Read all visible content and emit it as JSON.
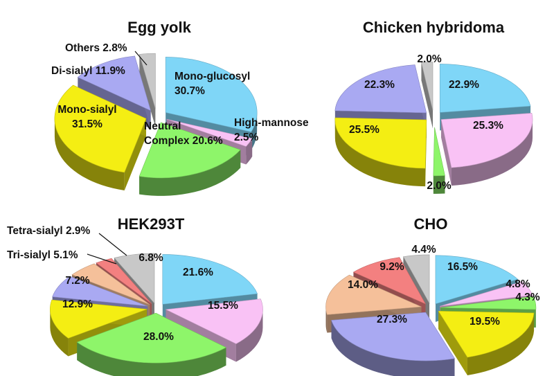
{
  "colors": {
    "mono-glucosyl": "#7fd6f7",
    "high-mannose": "#f9c2f5",
    "neutral-complex": "#8ef56a",
    "mono-sialyl": "#f4ee13",
    "di-sialyl": "#a9a9f2",
    "tri-sialyl": "#f5c09a",
    "tetra-sialyl": "#f38080",
    "others": "#c8c8c8"
  },
  "chart_data": [
    {
      "type": "pie",
      "title": "Egg yolk",
      "slices": [
        {
          "category": "mono-glucosyl",
          "value": 30.7,
          "label": "Mono-glucosyl 30.7%"
        },
        {
          "category": "high-mannose",
          "value": 2.5,
          "label": "High-mannose 2.5%"
        },
        {
          "category": "neutral-complex",
          "value": 20.6,
          "label": "Neutral Complex 20.6%"
        },
        {
          "category": "mono-sialyl",
          "value": 31.5,
          "label": "Mono-sialyl 31.5%"
        },
        {
          "category": "di-sialyl",
          "value": 11.9,
          "label": "Di-sialyl 11.9%"
        },
        {
          "category": "others",
          "value": 2.8,
          "label": "Others 2.8%"
        }
      ]
    },
    {
      "type": "pie",
      "title": "Chicken hybridoma",
      "slices": [
        {
          "category": "mono-glucosyl",
          "value": 22.9,
          "label": "22.9%"
        },
        {
          "category": "high-mannose",
          "value": 25.3,
          "label": "25.3%"
        },
        {
          "category": "neutral-complex",
          "value": 2.0,
          "label": "2.0%"
        },
        {
          "category": "mono-sialyl",
          "value": 25.5,
          "label": "25.5%"
        },
        {
          "category": "di-sialyl",
          "value": 22.3,
          "label": "22.3%"
        },
        {
          "category": "others",
          "value": 2.0,
          "label": "2.0%"
        }
      ]
    },
    {
      "type": "pie",
      "title": "HEK293T",
      "slices": [
        {
          "category": "mono-glucosyl",
          "value": 21.6,
          "label": "21.6%"
        },
        {
          "category": "high-mannose",
          "value": 15.5,
          "label": "15.5%"
        },
        {
          "category": "neutral-complex",
          "value": 28.0,
          "label": "28.0%"
        },
        {
          "category": "mono-sialyl",
          "value": 12.9,
          "label": "12.9%"
        },
        {
          "category": "di-sialyl",
          "value": 7.2,
          "label": "7.2%"
        },
        {
          "category": "tri-sialyl",
          "value": 5.1,
          "label": "Tri-sialyl 5.1%"
        },
        {
          "category": "tetra-sialyl",
          "value": 2.9,
          "label": "Tetra-sialyl 2.9%"
        },
        {
          "category": "others",
          "value": 6.8,
          "label": "6.8%"
        }
      ]
    },
    {
      "type": "pie",
      "title": "CHO",
      "slices": [
        {
          "category": "mono-glucosyl",
          "value": 16.5,
          "label": "16.5%"
        },
        {
          "category": "high-mannose",
          "value": 4.8,
          "label": "4.8%"
        },
        {
          "category": "neutral-complex",
          "value": 4.3,
          "label": "4.3%"
        },
        {
          "category": "mono-sialyl",
          "value": 19.5,
          "label": "19.5%"
        },
        {
          "category": "di-sialyl",
          "value": 27.3,
          "label": "27.3%"
        },
        {
          "category": "tri-sialyl",
          "value": 14.0,
          "label": "14.0%"
        },
        {
          "category": "tetra-sialyl",
          "value": 9.2,
          "label": "9.2%"
        },
        {
          "category": "others",
          "value": 4.4,
          "label": "4.4%"
        }
      ]
    }
  ]
}
